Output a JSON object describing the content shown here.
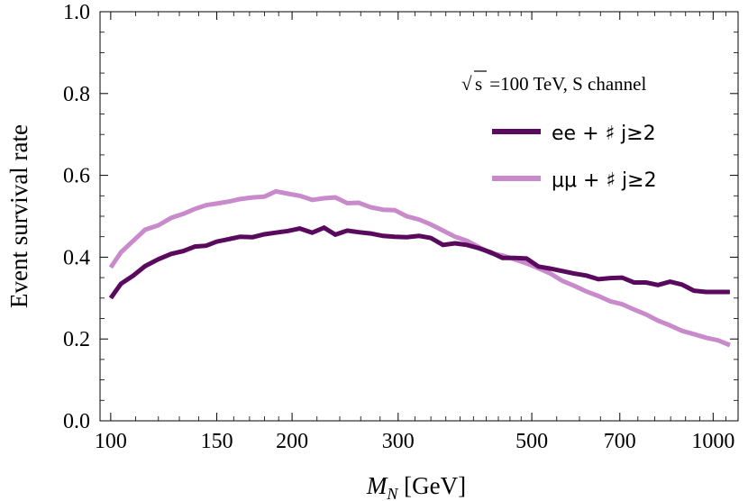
{
  "chart_data": {
    "type": "line",
    "title": "",
    "xlabel_symbol": "M",
    "xlabel_subscript": "N",
    "xlabel_unit": " [GeV]",
    "ylabel": "Event survival rate",
    "xscale": "log",
    "xlim": [
      96,
      1100
    ],
    "ylim": [
      0.0,
      1.0
    ],
    "xticks": [
      {
        "value": 100,
        "label": "100"
      },
      {
        "value": 150,
        "label": "150"
      },
      {
        "value": 200,
        "label": "200"
      },
      {
        "value": 300,
        "label": "300"
      },
      {
        "value": 500,
        "label": "500"
      },
      {
        "value": 700,
        "label": "700"
      },
      {
        "value": 1000,
        "label": "1000"
      }
    ],
    "yticks": [
      {
        "value": 0.0,
        "label": "0.0"
      },
      {
        "value": 0.2,
        "label": "0.2"
      },
      {
        "value": 0.4,
        "label": "0.4"
      },
      {
        "value": 0.6,
        "label": "0.6"
      },
      {
        "value": 0.8,
        "label": "0.8"
      },
      {
        "value": 1.0,
        "label": "1.0"
      }
    ],
    "annotation": {
      "sqrt_symbol": "√",
      "s": "s",
      "rest": " =100 TeV, S channel"
    },
    "legend_position": "top-right",
    "series": [
      {
        "name": "ee + ♯ j≥2",
        "color": "#5a0a5e",
        "x": [
          100,
          104,
          109,
          114,
          120,
          126,
          132,
          138,
          144,
          150,
          157,
          164,
          172,
          180,
          188,
          197,
          206,
          216,
          226,
          236,
          247,
          258,
          270,
          283,
          296,
          310,
          325,
          340,
          356,
          373,
          390,
          408,
          427,
          447,
          468,
          490,
          513,
          537,
          562,
          588,
          616,
          645,
          675,
          706,
          739,
          774,
          810,
          848,
          888,
          929,
          973,
          1018,
          1066
        ],
        "y": [
          0.3,
          0.335,
          0.355,
          0.378,
          0.395,
          0.408,
          0.415,
          0.426,
          0.428,
          0.438,
          0.444,
          0.45,
          0.449,
          0.456,
          0.46,
          0.464,
          0.47,
          0.46,
          0.472,
          0.455,
          0.465,
          0.461,
          0.458,
          0.452,
          0.45,
          0.449,
          0.452,
          0.447,
          0.43,
          0.434,
          0.43,
          0.422,
          0.412,
          0.398,
          0.398,
          0.397,
          0.377,
          0.372,
          0.366,
          0.36,
          0.355,
          0.346,
          0.349,
          0.35,
          0.338,
          0.338,
          0.332,
          0.34,
          0.333,
          0.318,
          0.315,
          0.315,
          0.315
        ],
        "y_end": 0.315
      },
      {
        "name": "μμ + ♯ j≥2",
        "color": "#c98acb",
        "x": [
          100,
          104,
          109,
          114,
          120,
          126,
          132,
          138,
          144,
          150,
          157,
          164,
          172,
          180,
          188,
          197,
          206,
          216,
          226,
          236,
          247,
          258,
          270,
          283,
          296,
          310,
          325,
          340,
          356,
          373,
          390,
          408,
          427,
          447,
          468,
          490,
          513,
          537,
          562,
          588,
          616,
          645,
          675,
          706,
          739,
          774,
          810,
          848,
          888,
          929,
          973,
          1018,
          1066
        ],
        "y": [
          0.375,
          0.412,
          0.44,
          0.467,
          0.478,
          0.496,
          0.506,
          0.518,
          0.527,
          0.531,
          0.536,
          0.542,
          0.546,
          0.548,
          0.561,
          0.555,
          0.55,
          0.54,
          0.544,
          0.546,
          0.532,
          0.533,
          0.522,
          0.516,
          0.515,
          0.5,
          0.492,
          0.48,
          0.465,
          0.45,
          0.44,
          0.425,
          0.41,
          0.404,
          0.395,
          0.385,
          0.373,
          0.36,
          0.342,
          0.33,
          0.316,
          0.305,
          0.292,
          0.285,
          0.272,
          0.26,
          0.245,
          0.233,
          0.22,
          0.212,
          0.203,
          0.197,
          0.185
        ],
        "y_end": 0.185
      }
    ]
  }
}
